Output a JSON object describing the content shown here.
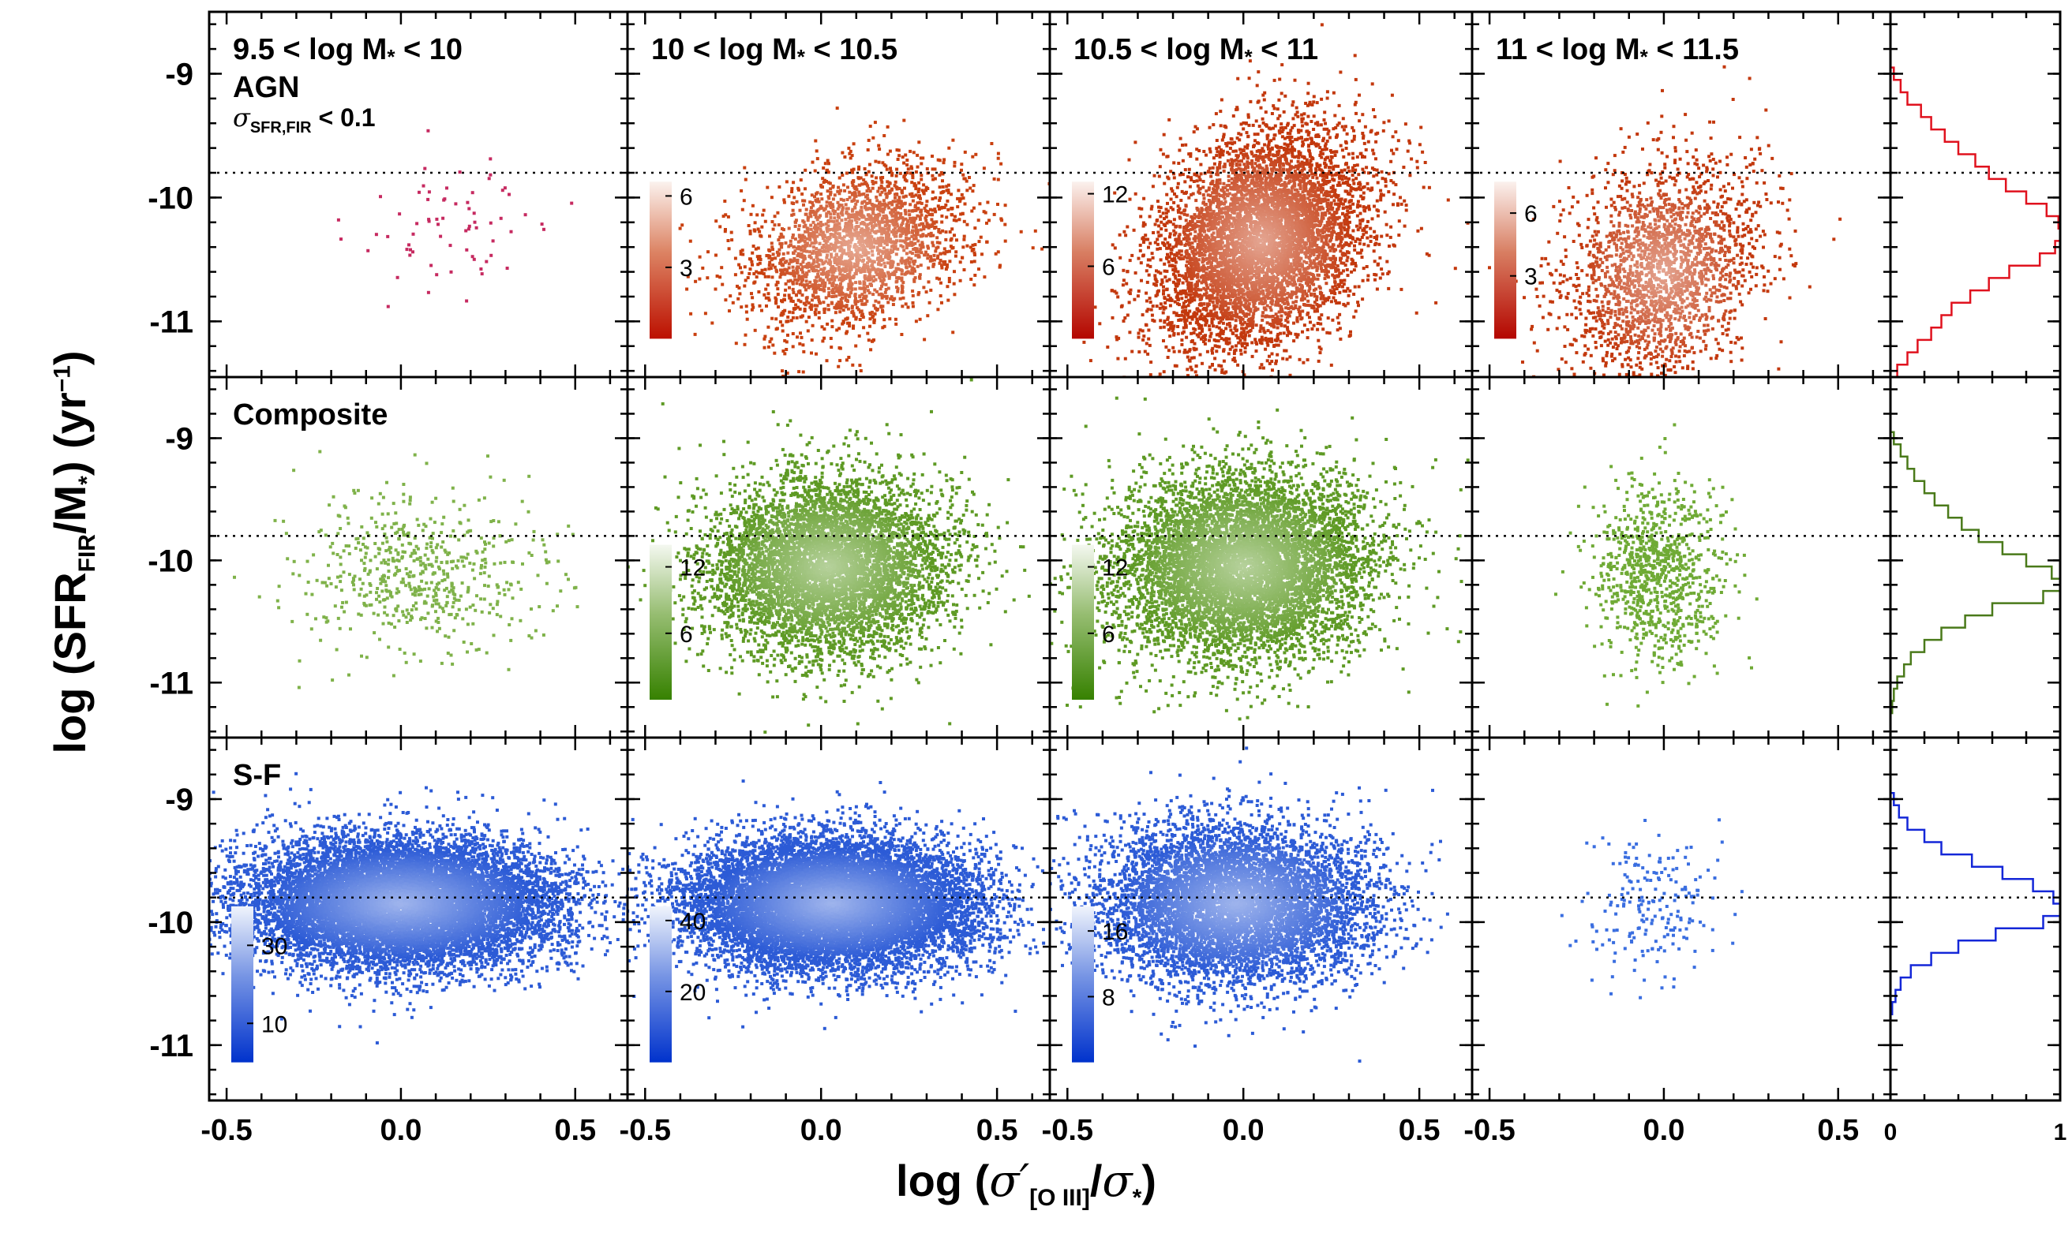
{
  "chart_data": {
    "type": "scatter",
    "xlabel": "log (σ′[O III]/σ*)",
    "ylabel": "log (SFR_FIR/M*) (yr^-1)",
    "xlim": [
      -0.55,
      0.65
    ],
    "ylim": [
      -11.45,
      -8.5
    ],
    "x_ticks": [
      "-0.5",
      "0.0",
      "0.5"
    ],
    "y_ticks": [
      "-9",
      "-10",
      "-11"
    ],
    "hist_x_ticks": [
      "0",
      "1"
    ],
    "reference_line_y": -9.8,
    "mass_bins": [
      "9.5 < log M* < 10",
      "10 < log M* < 10.5",
      "10.5 < log M* < 11",
      "11 < log M* < 11.5"
    ],
    "rows": [
      {
        "name": "AGN",
        "label": "AGN",
        "color": "#c23a12",
        "histogram_color": "#e0121e",
        "note": "σSFR,FIR < 0.1",
        "panels": [
          {
            "n": 70,
            "cx": 0.15,
            "cy": -10.25,
            "sx": 0.13,
            "sy": 0.3,
            "corr": 0.35,
            "point_color": "#c62a60",
            "colorbar": null
          },
          {
            "n": 2500,
            "cx": 0.1,
            "cy": -10.4,
            "sx": 0.16,
            "sy": 0.35,
            "corr": 0.3,
            "point_color": "#c9400f",
            "colorbar": {
              "ticks": [
                6,
                3
              ],
              "max": 6.6
            }
          },
          {
            "n": 6000,
            "cx": 0.05,
            "cy": -10.35,
            "sx": 0.15,
            "sy": 0.45,
            "corr": 0.3,
            "point_color": "#c3380d",
            "colorbar": {
              "ticks": [
                12,
                6
              ],
              "max": 13
            }
          },
          {
            "n": 2200,
            "cx": 0.0,
            "cy": -10.6,
            "sx": 0.14,
            "sy": 0.45,
            "corr": 0.3,
            "point_color": "#c3380d",
            "colorbar": {
              "ticks": [
                6,
                3
              ],
              "max": 7.5
            }
          }
        ],
        "histogram": [
          {
            "y": -9.0,
            "f": 0.02
          },
          {
            "y": -9.1,
            "f": 0.06
          },
          {
            "y": -9.2,
            "f": 0.1
          },
          {
            "y": -9.3,
            "f": 0.18
          },
          {
            "y": -9.4,
            "f": 0.24
          },
          {
            "y": -9.5,
            "f": 0.32
          },
          {
            "y": -9.6,
            "f": 0.4
          },
          {
            "y": -9.7,
            "f": 0.5
          },
          {
            "y": -9.8,
            "f": 0.58
          },
          {
            "y": -9.9,
            "f": 0.68
          },
          {
            "y": -10.0,
            "f": 0.8
          },
          {
            "y": -10.1,
            "f": 0.92
          },
          {
            "y": -10.2,
            "f": 0.99
          },
          {
            "y": -10.3,
            "f": 1.0
          },
          {
            "y": -10.4,
            "f": 0.97
          },
          {
            "y": -10.5,
            "f": 0.88
          },
          {
            "y": -10.6,
            "f": 0.7
          },
          {
            "y": -10.7,
            "f": 0.58
          },
          {
            "y": -10.8,
            "f": 0.47
          },
          {
            "y": -10.9,
            "f": 0.36
          },
          {
            "y": -11.0,
            "f": 0.3
          },
          {
            "y": -11.1,
            "f": 0.24
          },
          {
            "y": -11.2,
            "f": 0.16
          },
          {
            "y": -11.3,
            "f": 0.1
          },
          {
            "y": -11.4,
            "f": 0.04
          }
        ]
      },
      {
        "name": "Composite",
        "label": "Composite",
        "color": "#5e8c1e",
        "histogram_color": "#4a7a1a",
        "note": "",
        "panels": [
          {
            "n": 600,
            "cx": 0.05,
            "cy": -10.1,
            "sx": 0.17,
            "sy": 0.32,
            "corr": 0.05,
            "point_color": "#7fb24a",
            "colorbar": null
          },
          {
            "n": 6000,
            "cx": 0.02,
            "cy": -10.05,
            "sx": 0.17,
            "sy": 0.36,
            "corr": 0.05,
            "point_color": "#5e9a24",
            "colorbar": {
              "ticks": [
                12,
                6
              ],
              "max": 14
            }
          },
          {
            "n": 7000,
            "cx": 0.0,
            "cy": -10.05,
            "sx": 0.18,
            "sy": 0.38,
            "corr": 0.05,
            "point_color": "#5e9a24",
            "colorbar": {
              "ticks": [
                12,
                6
              ],
              "max": 14
            }
          },
          {
            "n": 900,
            "cx": -0.02,
            "cy": -10.1,
            "sx": 0.09,
            "sy": 0.38,
            "corr": 0.0,
            "point_color": "#6faa35",
            "colorbar": null
          }
        ],
        "histogram": [
          {
            "y": -9.0,
            "f": 0.02
          },
          {
            "y": -9.1,
            "f": 0.06
          },
          {
            "y": -9.2,
            "f": 0.1
          },
          {
            "y": -9.3,
            "f": 0.14
          },
          {
            "y": -9.4,
            "f": 0.2
          },
          {
            "y": -9.5,
            "f": 0.26
          },
          {
            "y": -9.6,
            "f": 0.34
          },
          {
            "y": -9.7,
            "f": 0.42
          },
          {
            "y": -9.8,
            "f": 0.52
          },
          {
            "y": -9.9,
            "f": 0.66
          },
          {
            "y": -10.0,
            "f": 0.8
          },
          {
            "y": -10.1,
            "f": 0.95
          },
          {
            "y": -10.2,
            "f": 1.0
          },
          {
            "y": -10.3,
            "f": 0.9
          },
          {
            "y": -10.4,
            "f": 0.6
          },
          {
            "y": -10.5,
            "f": 0.44
          },
          {
            "y": -10.6,
            "f": 0.3
          },
          {
            "y": -10.7,
            "f": 0.2
          },
          {
            "y": -10.8,
            "f": 0.12
          },
          {
            "y": -10.9,
            "f": 0.08
          },
          {
            "y": -11.0,
            "f": 0.04
          },
          {
            "y": -11.1,
            "f": 0.02
          },
          {
            "y": -11.2,
            "f": 0.01
          }
        ]
      },
      {
        "name": "S-F",
        "label": "S-F",
        "color": "#2c5bd6",
        "histogram_color": "#1427d8",
        "note": "",
        "panels": [
          {
            "n": 12000,
            "cx": 0.0,
            "cy": -9.85,
            "sx": 0.22,
            "sy": 0.26,
            "corr": 0.0,
            "point_color": "#2c5bd6",
            "colorbar": {
              "ticks": [
                30,
                10
              ],
              "max": 40
            }
          },
          {
            "n": 12000,
            "cx": 0.03,
            "cy": -9.85,
            "sx": 0.2,
            "sy": 0.26,
            "corr": 0.0,
            "point_color": "#2c5bd6",
            "colorbar": {
              "ticks": [
                40,
                20
              ],
              "max": 44
            }
          },
          {
            "n": 7000,
            "cx": -0.02,
            "cy": -9.85,
            "sx": 0.19,
            "sy": 0.32,
            "corr": 0.0,
            "point_color": "#2c5bd6",
            "colorbar": {
              "ticks": [
                16,
                8
              ],
              "max": 19
            }
          },
          {
            "n": 200,
            "cx": -0.03,
            "cy": -9.9,
            "sx": 0.1,
            "sy": 0.32,
            "corr": 0.0,
            "point_color": "#3a6ee0",
            "colorbar": null
          }
        ],
        "histogram": [
          {
            "y": -9.0,
            "f": 0.02
          },
          {
            "y": -9.1,
            "f": 0.05
          },
          {
            "y": -9.2,
            "f": 0.1
          },
          {
            "y": -9.3,
            "f": 0.2
          },
          {
            "y": -9.4,
            "f": 0.3
          },
          {
            "y": -9.5,
            "f": 0.48
          },
          {
            "y": -9.6,
            "f": 0.66
          },
          {
            "y": -9.7,
            "f": 0.84
          },
          {
            "y": -9.8,
            "f": 0.96
          },
          {
            "y": -9.9,
            "f": 1.0
          },
          {
            "y": -10.0,
            "f": 0.9
          },
          {
            "y": -10.1,
            "f": 0.62
          },
          {
            "y": -10.2,
            "f": 0.4
          },
          {
            "y": -10.3,
            "f": 0.24
          },
          {
            "y": -10.4,
            "f": 0.12
          },
          {
            "y": -10.5,
            "f": 0.06
          },
          {
            "y": -10.6,
            "f": 0.03
          },
          {
            "y": -10.7,
            "f": 0.01
          }
        ]
      }
    ]
  }
}
